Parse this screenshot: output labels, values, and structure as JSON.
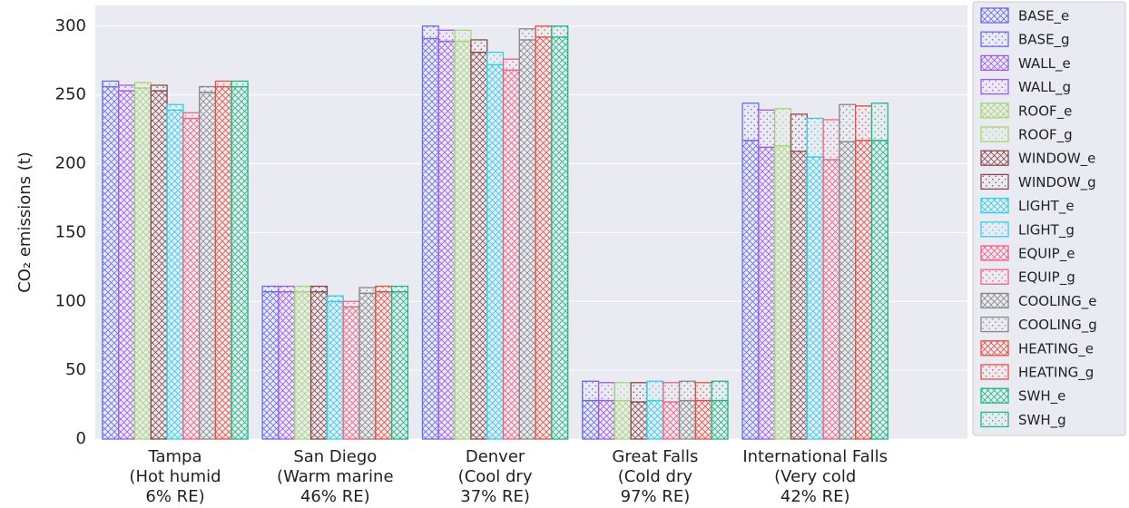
{
  "chart_data": {
    "type": "stacked_bar",
    "ylabel": "CO₂ emissions (t)",
    "categories": [
      "Tampa\n(Hot humid\n6% RE)",
      "San Diego\n(Warm marine\n46% RE)",
      "Denver\n(Cool dry\n37% RE)",
      "Great Falls\n(Cold dry\n97% RE)",
      "International Falls\n(Very cold\n42% RE)"
    ],
    "ylim": [
      0,
      315
    ],
    "yticks": [
      0,
      50,
      100,
      150,
      200,
      250,
      300
    ],
    "grid": true,
    "legend": "outside right",
    "series": [
      {
        "name": "BASE_e",
        "color": "#6a6ae8",
        "hatch": "xx",
        "stack": "BASE",
        "values": [
          256,
          107,
          291,
          28,
          217
        ]
      },
      {
        "name": "BASE_g",
        "color": "#6a6ae8",
        "hatch": "..",
        "stack": "BASE",
        "values": [
          4,
          4,
          9,
          14,
          27
        ]
      },
      {
        "name": "WALL_e",
        "color": "#a05be6",
        "hatch": "xx",
        "stack": "WALL",
        "values": [
          253,
          107,
          289,
          28,
          212
        ]
      },
      {
        "name": "WALL_g",
        "color": "#a05be6",
        "hatch": "..",
        "stack": "WALL",
        "values": [
          4,
          4,
          8,
          13,
          27
        ]
      },
      {
        "name": "ROOF_e",
        "color": "#a4d86e",
        "hatch": "xx",
        "stack": "ROOF",
        "values": [
          255,
          107,
          289,
          28,
          213
        ]
      },
      {
        "name": "ROOF_g",
        "color": "#a4d86e",
        "hatch": "..",
        "stack": "ROOF",
        "values": [
          4,
          4,
          8,
          13,
          27
        ]
      },
      {
        "name": "WINDOW_e",
        "color": "#8b4a4a",
        "hatch": "xx",
        "stack": "WINDOW",
        "values": [
          253,
          107,
          281,
          27,
          209
        ]
      },
      {
        "name": "WINDOW_g",
        "color": "#8b4a4a",
        "hatch": "..",
        "stack": "WINDOW",
        "values": [
          4,
          4,
          9,
          14,
          27
        ]
      },
      {
        "name": "LIGHT_e",
        "color": "#2fd0e8",
        "hatch": "xx",
        "stack": "LIGHT",
        "values": [
          239,
          100,
          272,
          28,
          205
        ]
      },
      {
        "name": "LIGHT_g",
        "color": "#2fd0e8",
        "hatch": "..",
        "stack": "LIGHT",
        "values": [
          4,
          4,
          9,
          14,
          28
        ]
      },
      {
        "name": "EQUIP_e",
        "color": "#f06080",
        "hatch": "xx",
        "stack": "EQUIP",
        "values": [
          233,
          96,
          268,
          27,
          203
        ]
      },
      {
        "name": "EQUIP_g",
        "color": "#f06080",
        "hatch": "..",
        "stack": "EQUIP",
        "values": [
          4,
          4,
          8,
          14,
          29
        ]
      },
      {
        "name": "COOLING_e",
        "color": "#888888",
        "hatch": "xx",
        "stack": "COOLING",
        "values": [
          252,
          106,
          290,
          28,
          216
        ]
      },
      {
        "name": "COOLING_g",
        "color": "#888888",
        "hatch": "..",
        "stack": "COOLING",
        "values": [
          4,
          4,
          8,
          14,
          27
        ]
      },
      {
        "name": "HEATING_e",
        "color": "#e8503c",
        "hatch": "xx",
        "stack": "HEATING",
        "values": [
          256,
          107,
          292,
          28,
          217
        ]
      },
      {
        "name": "HEATING_g",
        "color": "#e8503c",
        "hatch": "..",
        "stack": "HEATING",
        "values": [
          4,
          4,
          8,
          13,
          25
        ]
      },
      {
        "name": "SWH_e",
        "color": "#20b880",
        "hatch": "xx",
        "stack": "SWH",
        "values": [
          256,
          107,
          292,
          28,
          217
        ]
      },
      {
        "name": "SWH_g",
        "color": "#20b880",
        "hatch": "..",
        "stack": "SWH",
        "values": [
          4,
          4,
          8,
          14,
          27
        ]
      }
    ]
  }
}
